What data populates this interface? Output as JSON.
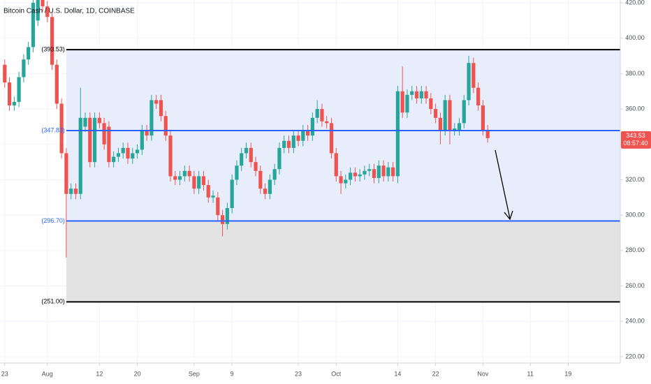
{
  "chart_data": {
    "type": "candlestick",
    "title": "Bitcoin Cash / U.S. Dollar, 1D, COINBASE",
    "x": [
      "07-23",
      "07-24",
      "07-25",
      "07-26",
      "07-27",
      "07-28",
      "07-29",
      "07-30",
      "07-31",
      "08-01",
      "08-02",
      "08-03",
      "08-04",
      "08-05",
      "08-06",
      "08-07",
      "08-08",
      "08-09",
      "08-10",
      "08-11",
      "08-12",
      "08-13",
      "08-14",
      "08-15",
      "08-16",
      "08-17",
      "08-18",
      "08-19",
      "08-20",
      "08-21",
      "08-22",
      "08-23",
      "08-24",
      "08-25",
      "08-26",
      "08-27",
      "08-28",
      "08-29",
      "08-30",
      "08-31",
      "09-01",
      "09-02",
      "09-03",
      "09-04",
      "09-05",
      "09-06",
      "09-07",
      "09-08",
      "09-09",
      "09-10",
      "09-11",
      "09-12",
      "09-13",
      "09-14",
      "09-15",
      "09-16",
      "09-17",
      "09-18",
      "09-19",
      "09-20",
      "09-21",
      "09-22",
      "09-23",
      "09-24",
      "09-25",
      "09-26",
      "09-27",
      "09-28",
      "09-29",
      "09-30",
      "10-01",
      "10-02",
      "10-03",
      "10-04",
      "10-05",
      "10-06",
      "10-07",
      "10-08",
      "10-09",
      "10-10",
      "10-11",
      "10-12",
      "10-13",
      "10-14",
      "10-15",
      "10-16",
      "10-17",
      "10-18",
      "10-19",
      "10-20",
      "10-21",
      "10-22",
      "10-23",
      "10-24",
      "10-25",
      "10-26",
      "10-27",
      "10-28",
      "10-29",
      "10-30",
      "10-31",
      "11-01",
      "11-02"
    ],
    "open": [
      385,
      375,
      362,
      364,
      378,
      388,
      395,
      410,
      425,
      418,
      412,
      385,
      363,
      335,
      312,
      315,
      312,
      350,
      355,
      330,
      355,
      352,
      350,
      330,
      333,
      335,
      338,
      332,
      335,
      337,
      348,
      345,
      365,
      365,
      356,
      345,
      322,
      320,
      322,
      325,
      322,
      315,
      322,
      317,
      310,
      310,
      300,
      295,
      304,
      320,
      328,
      335,
      338,
      330,
      325,
      315,
      312,
      320,
      326,
      338,
      342,
      338,
      345,
      342,
      348,
      345,
      355,
      360,
      353,
      352,
      335,
      322,
      318,
      320,
      324,
      322,
      323,
      325,
      326,
      321,
      328,
      322,
      327,
      322,
      370,
      358,
      368,
      370,
      366,
      370,
      366,
      360,
      355,
      348,
      365,
      348,
      348,
      352,
      365,
      386,
      372,
      362,
      348
    ],
    "high": [
      388,
      378,
      367,
      381,
      391,
      398,
      423,
      428,
      428,
      421,
      415,
      388,
      366,
      338,
      318,
      318,
      372,
      358,
      358,
      358,
      358,
      355,
      353,
      336,
      338,
      341,
      341,
      338,
      340,
      351,
      351,
      368,
      368,
      368,
      359,
      348,
      325,
      325,
      328,
      328,
      325,
      325,
      325,
      320,
      314,
      313,
      303,
      307,
      323,
      331,
      338,
      341,
      341,
      333,
      328,
      318,
      323,
      329,
      341,
      345,
      345,
      348,
      348,
      351,
      351,
      358,
      365,
      363,
      356,
      355,
      338,
      325,
      323,
      327,
      327,
      326,
      328,
      329,
      329,
      331,
      331,
      330,
      330,
      373,
      384,
      371,
      373,
      373,
      373,
      373,
      369,
      363,
      358,
      368,
      368,
      352,
      355,
      368,
      390,
      389,
      375,
      365,
      351
    ],
    "low": [
      372,
      359,
      359,
      361,
      375,
      385,
      392,
      407,
      415,
      409,
      382,
      360,
      332,
      276,
      309,
      309,
      309,
      347,
      327,
      327,
      349,
      337,
      327,
      327,
      330,
      332,
      329,
      329,
      332,
      334,
      342,
      342,
      360,
      353,
      342,
      319,
      317,
      317,
      319,
      319,
      312,
      312,
      314,
      307,
      307,
      297,
      288,
      292,
      301,
      317,
      325,
      332,
      327,
      322,
      312,
      309,
      309,
      317,
      323,
      335,
      335,
      335,
      339,
      339,
      342,
      342,
      352,
      350,
      349,
      332,
      319,
      312,
      315,
      317,
      319,
      319,
      320,
      322,
      318,
      318,
      319,
      319,
      319,
      318,
      355,
      355,
      365,
      363,
      363,
      363,
      357,
      352,
      340,
      345,
      340,
      345,
      345,
      349,
      362,
      369,
      359,
      345,
      341
    ],
    "close": [
      375,
      362,
      364,
      378,
      388,
      395,
      420,
      425,
      418,
      412,
      385,
      363,
      335,
      312,
      315,
      312,
      355,
      355,
      330,
      355,
      352,
      340,
      330,
      333,
      335,
      338,
      332,
      335,
      337,
      348,
      345,
      365,
      363,
      356,
      345,
      322,
      320,
      322,
      325,
      322,
      315,
      322,
      317,
      310,
      311,
      300,
      295,
      304,
      320,
      328,
      335,
      338,
      330,
      325,
      315,
      312,
      320,
      326,
      338,
      342,
      338,
      345,
      342,
      348,
      345,
      355,
      360,
      353,
      352,
      335,
      322,
      318,
      320,
      324,
      322,
      323,
      325,
      326,
      321,
      328,
      322,
      327,
      322,
      370,
      358,
      368,
      370,
      366,
      370,
      366,
      360,
      355,
      348,
      365,
      348,
      349,
      352,
      365,
      386,
      372,
      362,
      348,
      343.53
    ],
    "up_color": "#26a69a",
    "down_color": "#ef5350",
    "xlim": [
      "07-22",
      "11-30"
    ],
    "xticks": [
      {
        "value": "07-23",
        "label": "23"
      },
      {
        "value": "08-01",
        "label": "Aug"
      },
      {
        "value": "08-12",
        "label": "12"
      },
      {
        "value": "08-20",
        "label": "20"
      },
      {
        "value": "09-01",
        "label": "Sep"
      },
      {
        "value": "09-09",
        "label": "9"
      },
      {
        "value": "09-23",
        "label": "23"
      },
      {
        "value": "10-01",
        "label": "Oct"
      },
      {
        "value": "10-14",
        "label": "14"
      },
      {
        "value": "10-22",
        "label": "22"
      },
      {
        "value": "11-01",
        "label": "Nov"
      },
      {
        "value": "11-11",
        "label": "11"
      },
      {
        "value": "11-19",
        "label": "19"
      }
    ],
    "ylim": [
      216.4,
      421.6
    ],
    "yticks": [
      {
        "value": 220,
        "label": "220.00"
      },
      {
        "value": 240,
        "label": "240.00"
      },
      {
        "value": 260,
        "label": "260.00"
      },
      {
        "value": 280,
        "label": "280.00"
      },
      {
        "value": 300,
        "label": "300.00"
      },
      {
        "value": 320,
        "label": "320.00"
      },
      {
        "value": 340,
        "label": "340.00"
      },
      {
        "value": 360,
        "label": "360.00"
      },
      {
        "value": 380,
        "label": "380.00"
      },
      {
        "value": 400,
        "label": "400.00"
      },
      {
        "value": 420,
        "label": "420.00"
      }
    ],
    "grid": true,
    "drawing_start": "08-05",
    "zones": [
      {
        "top": 393.53,
        "bottom": 296.7,
        "color": "#e8edfc"
      },
      {
        "top": 296.7,
        "bottom": 251,
        "color": "#e3e3e3"
      }
    ],
    "levels": [
      {
        "value": 393.53,
        "label": "(393.53)",
        "color": "#000000"
      },
      {
        "value": 347.83,
        "label": "(347.83)",
        "color": "#2962ff"
      },
      {
        "value": 296.7,
        "label": "(296.70)",
        "color": "#2962ff"
      },
      {
        "value": 251,
        "label": "(251.00)",
        "color": "#000000"
      }
    ],
    "last_price": {
      "value": 343.53,
      "label": "343.53",
      "countdown": "08:57:40",
      "color": "#ef5350"
    }
  }
}
